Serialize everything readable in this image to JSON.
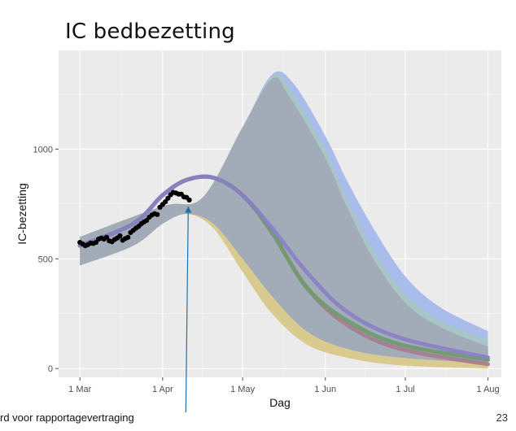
{
  "slide": {
    "title": "IC bedbezetting",
    "footnote": "rd voor rapportagevertraging",
    "page_number": "23"
  },
  "chart_data": {
    "type": "area",
    "title": "",
    "xlabel": "Dag",
    "ylabel": "IC-bezetting",
    "x_ticks": [
      {
        "label": "1 Mar",
        "day": 0
      },
      {
        "label": "1 Apr",
        "day": 31
      },
      {
        "label": "1 May",
        "day": 61
      },
      {
        "label": "1 Jun",
        "day": 92
      },
      {
        "label": "1 Jul",
        "day": 122
      },
      {
        "label": "1 Aug",
        "day": 153
      }
    ],
    "y_ticks": [
      0,
      500,
      1000
    ],
    "xlim_day": [
      -8,
      158
    ],
    "ylim": [
      -40,
      1450
    ],
    "grid": true,
    "colors": {
      "panel": "#ebebeb",
      "band_blue": "#a7b9eb",
      "band_teal": "#a7c7c3",
      "band_yellow": "#d8c88a",
      "band_common": "#a1acb8",
      "line_purple": "#8a7fc6",
      "line_red": "#a67b8f",
      "line_green": "#6f9a6d",
      "observed": "#000000",
      "arrow": "#1f6fa8"
    },
    "bands": [
      {
        "key": "blue",
        "upper": [
          [
            0,
            600
          ],
          [
            31,
            740
          ],
          [
            46,
            780
          ],
          [
            61,
            1100
          ],
          [
            72,
            1340
          ],
          [
            80,
            1300
          ],
          [
            92,
            1060
          ],
          [
            100,
            860
          ],
          [
            110,
            640
          ],
          [
            122,
            420
          ],
          [
            135,
            280
          ],
          [
            153,
            170
          ]
        ],
        "lower": [
          [
            0,
            470
          ],
          [
            20,
            560
          ],
          [
            31,
            660
          ],
          [
            40,
            705
          ],
          [
            50,
            660
          ],
          [
            61,
            500
          ],
          [
            72,
            330
          ],
          [
            85,
            170
          ],
          [
            100,
            90
          ],
          [
            120,
            50
          ],
          [
            153,
            25
          ]
        ]
      },
      {
        "key": "teal",
        "upper": [
          [
            0,
            600
          ],
          [
            31,
            740
          ],
          [
            46,
            780
          ],
          [
            61,
            1100
          ],
          [
            72,
            1330
          ],
          [
            78,
            1290
          ],
          [
            92,
            1000
          ],
          [
            100,
            780
          ],
          [
            110,
            540
          ],
          [
            122,
            340
          ],
          [
            135,
            220
          ],
          [
            153,
            130
          ]
        ],
        "lower": [
          [
            0,
            470
          ],
          [
            20,
            560
          ],
          [
            31,
            660
          ],
          [
            40,
            705
          ],
          [
            50,
            660
          ],
          [
            61,
            500
          ],
          [
            72,
            330
          ],
          [
            85,
            170
          ],
          [
            100,
            90
          ],
          [
            120,
            50
          ],
          [
            153,
            25
          ]
        ]
      },
      {
        "key": "yellow",
        "upper": [
          [
            0,
            600
          ],
          [
            31,
            740
          ],
          [
            46,
            780
          ],
          [
            61,
            1100
          ],
          [
            72,
            1320
          ],
          [
            78,
            1250
          ],
          [
            92,
            960
          ],
          [
            100,
            740
          ],
          [
            110,
            500
          ],
          [
            122,
            300
          ],
          [
            135,
            190
          ],
          [
            153,
            100
          ]
        ],
        "lower": [
          [
            0,
            470
          ],
          [
            20,
            560
          ],
          [
            31,
            660
          ],
          [
            40,
            705
          ],
          [
            50,
            640
          ],
          [
            61,
            440
          ],
          [
            72,
            250
          ],
          [
            85,
            110
          ],
          [
            100,
            50
          ],
          [
            120,
            15
          ],
          [
            153,
            0
          ]
        ]
      },
      {
        "key": "common",
        "upper": [
          [
            0,
            600
          ],
          [
            31,
            740
          ],
          [
            46,
            780
          ],
          [
            61,
            1100
          ],
          [
            72,
            1320
          ],
          [
            78,
            1250
          ],
          [
            92,
            960
          ],
          [
            100,
            740
          ],
          [
            110,
            500
          ],
          [
            122,
            300
          ],
          [
            135,
            190
          ],
          [
            153,
            100
          ]
        ],
        "lower": [
          [
            0,
            470
          ],
          [
            20,
            560
          ],
          [
            31,
            660
          ],
          [
            40,
            705
          ],
          [
            50,
            660
          ],
          [
            61,
            500
          ],
          [
            72,
            330
          ],
          [
            85,
            170
          ],
          [
            100,
            90
          ],
          [
            120,
            50
          ],
          [
            153,
            25
          ]
        ]
      }
    ],
    "series": [
      {
        "key": "red",
        "values": [
          [
            0,
            560
          ],
          [
            20,
            660
          ],
          [
            31,
            790
          ],
          [
            40,
            860
          ],
          [
            50,
            870
          ],
          [
            61,
            790
          ],
          [
            72,
            620
          ],
          [
            85,
            370
          ],
          [
            100,
            200
          ],
          [
            120,
            90
          ],
          [
            153,
            20
          ]
        ]
      },
      {
        "key": "green",
        "values": [
          [
            0,
            560
          ],
          [
            20,
            660
          ],
          [
            31,
            790
          ],
          [
            40,
            860
          ],
          [
            50,
            870
          ],
          [
            61,
            790
          ],
          [
            72,
            620
          ],
          [
            85,
            370
          ],
          [
            100,
            220
          ],
          [
            120,
            110
          ],
          [
            153,
            40
          ]
        ]
      },
      {
        "key": "purple",
        "values": [
          [
            0,
            560
          ],
          [
            20,
            660
          ],
          [
            31,
            790
          ],
          [
            40,
            860
          ],
          [
            50,
            870
          ],
          [
            61,
            790
          ],
          [
            72,
            640
          ],
          [
            85,
            440
          ],
          [
            100,
            260
          ],
          [
            120,
            140
          ],
          [
            153,
            50
          ]
        ]
      }
    ],
    "observed": [
      [
        0,
        575
      ],
      [
        1,
        568
      ],
      [
        2,
        560
      ],
      [
        3,
        565
      ],
      [
        4,
        572
      ],
      [
        5,
        570
      ],
      [
        6,
        575
      ],
      [
        7,
        590
      ],
      [
        8,
        595
      ],
      [
        9,
        590
      ],
      [
        10,
        598
      ],
      [
        11,
        582
      ],
      [
        12,
        578
      ],
      [
        13,
        588
      ],
      [
        14,
        595
      ],
      [
        15,
        605
      ],
      [
        16,
        585
      ],
      [
        17,
        592
      ],
      [
        18,
        598
      ],
      [
        19,
        620
      ],
      [
        20,
        630
      ],
      [
        21,
        640
      ],
      [
        22,
        648
      ],
      [
        23,
        660
      ],
      [
        24,
        668
      ],
      [
        25,
        675
      ],
      [
        26,
        690
      ],
      [
        27,
        700
      ],
      [
        28,
        706
      ],
      [
        29,
        702
      ],
      [
        30,
        735
      ],
      [
        31,
        748
      ],
      [
        32,
        760
      ],
      [
        33,
        776
      ],
      [
        34,
        792
      ],
      [
        35,
        803
      ],
      [
        36,
        800
      ],
      [
        37,
        795
      ],
      [
        38,
        795
      ],
      [
        39,
        782
      ],
      [
        40,
        780
      ],
      [
        41,
        768
      ]
    ],
    "annotation_arrow": {
      "from_day": 39.7,
      "from_y": -200,
      "to_day": 40.6,
      "to_y": 740
    }
  }
}
